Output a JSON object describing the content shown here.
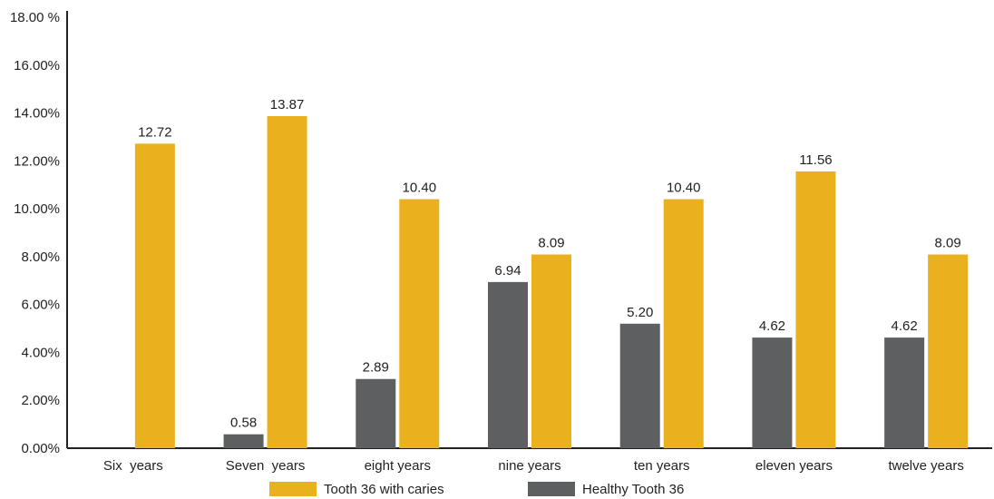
{
  "chart_data": {
    "type": "bar",
    "categories": [
      "Six  years",
      "Seven  years",
      "eight years",
      "nine years",
      "ten years",
      "eleven years",
      "twelve years"
    ],
    "series": [
      {
        "name": "Healthy Tooth 36",
        "color": "#5d5f61",
        "values": [
          null,
          0.58,
          2.89,
          6.94,
          5.2,
          4.62,
          4.62
        ],
        "labels": [
          "",
          "0.58",
          "2.89",
          "6.94",
          "5.20",
          "4.62",
          "4.62"
        ]
      },
      {
        "name": "Tooth 36 with caries",
        "color": "#eab11f",
        "values": [
          12.72,
          13.87,
          10.4,
          8.09,
          10.4,
          11.56,
          8.09
        ],
        "labels": [
          "12.72",
          "13.87",
          "10.40",
          "8.09",
          "10.40",
          "11.56",
          "8.09"
        ]
      }
    ],
    "yticks": [
      "0.00%",
      "2.00%",
      "4.00%",
      "6.00%",
      "8.00%",
      "10.00%",
      "12.00%",
      "14.00%",
      "16.00%",
      "18.00 %"
    ],
    "ylim": [
      0,
      18
    ],
    "grid": false,
    "legend_position": "bottom"
  }
}
